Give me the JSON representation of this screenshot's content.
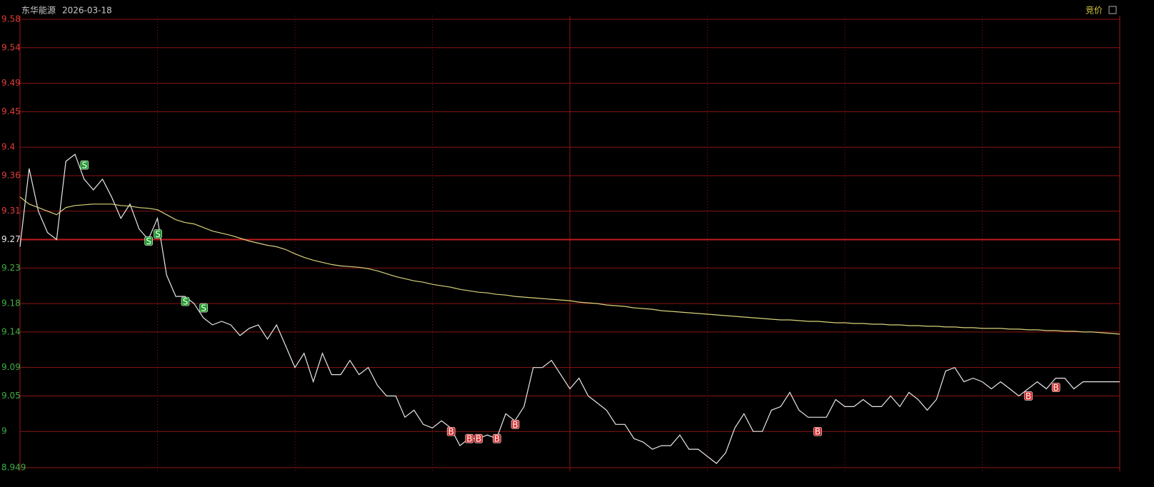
{
  "chart_data": {
    "type": "line",
    "title": "东华能源",
    "date": "2026-03-18",
    "mode_label": "竞价",
    "ylim": [
      8.949,
      9.58
    ],
    "yticks": [
      9.58,
      9.54,
      9.49,
      9.45,
      9.4,
      9.36,
      9.31,
      9.27,
      9.23,
      9.18,
      9.14,
      9.09,
      9.05,
      9.0,
      8.949
    ],
    "base": 9.27,
    "up_color": "#e03a3a",
    "down_color": "#3cb043",
    "grid": true,
    "series": [
      {
        "color": "#e8e8e8",
        "values": [
          9.26,
          9.37,
          9.31,
          9.28,
          9.27,
          9.38,
          9.39,
          9.355,
          9.34,
          9.355,
          9.33,
          9.3,
          9.32,
          9.285,
          9.27,
          9.3,
          9.22,
          9.19,
          9.19,
          9.18,
          9.16,
          9.15,
          9.155,
          9.15,
          9.135,
          9.145,
          9.15,
          9.13,
          9.15,
          9.12,
          9.09,
          9.11,
          9.07,
          9.11,
          9.08,
          9.08,
          9.1,
          9.08,
          9.09,
          9.065,
          9.05,
          9.05,
          9.02,
          9.03,
          9.01,
          9.005,
          9.015,
          9.005,
          8.98,
          8.99,
          8.99,
          8.995,
          8.99,
          9.025,
          9.015,
          9.035,
          9.09,
          9.09,
          9.1,
          9.08,
          9.06,
          9.075,
          9.05,
          9.04,
          9.03,
          9.01,
          9.01,
          8.99,
          8.985,
          8.975,
          8.98,
          8.98,
          8.995,
          8.975,
          8.975,
          8.965,
          8.955,
          8.97,
          9.005,
          9.025,
          9.0,
          9.0,
          9.03,
          9.035,
          9.055,
          9.03,
          9.02,
          9.02,
          9.02,
          9.045,
          9.035,
          9.035,
          9.045,
          9.035,
          9.035,
          9.05,
          9.035,
          9.055,
          9.045,
          9.03,
          9.045,
          9.085,
          9.09,
          9.07,
          9.075,
          9.07,
          9.06,
          9.07,
          9.06,
          9.05,
          9.06,
          9.07,
          9.06,
          9.075,
          9.075,
          9.06,
          9.07,
          9.07,
          9.07,
          9.07,
          9.07
        ]
      },
      {
        "color": "#d8d27a",
        "values": [
          9.33,
          9.32,
          9.315,
          9.31,
          9.305,
          9.315,
          9.318,
          9.319,
          9.32,
          9.32,
          9.32,
          9.318,
          9.317,
          9.315,
          9.314,
          9.312,
          9.305,
          9.298,
          9.294,
          9.292,
          9.287,
          9.282,
          9.279,
          9.276,
          9.272,
          9.268,
          9.265,
          9.262,
          9.26,
          9.256,
          9.25,
          9.245,
          9.241,
          9.238,
          9.235,
          9.233,
          9.232,
          9.231,
          9.229,
          9.226,
          9.222,
          9.218,
          9.215,
          9.212,
          9.21,
          9.207,
          9.205,
          9.203,
          9.2,
          9.198,
          9.196,
          9.195,
          9.193,
          9.192,
          9.19,
          9.189,
          9.188,
          9.187,
          9.186,
          9.185,
          9.184,
          9.182,
          9.181,
          9.18,
          9.178,
          9.177,
          9.176,
          9.174,
          9.173,
          9.172,
          9.17,
          9.169,
          9.168,
          9.167,
          9.166,
          9.165,
          9.164,
          9.163,
          9.162,
          9.161,
          9.16,
          9.159,
          9.158,
          9.157,
          9.157,
          9.156,
          9.155,
          9.155,
          9.154,
          9.153,
          9.153,
          9.152,
          9.152,
          9.151,
          9.151,
          9.15,
          9.15,
          9.149,
          9.149,
          9.148,
          9.148,
          9.147,
          9.147,
          9.146,
          9.146,
          9.145,
          9.145,
          9.145,
          9.144,
          9.144,
          9.143,
          9.143,
          9.142,
          9.142,
          9.141,
          9.141,
          9.14,
          9.14,
          9.139,
          9.138,
          9.137
        ]
      }
    ],
    "signals": [
      {
        "label": "S",
        "index": 7,
        "value": 9.375,
        "color": "#1f9a2a"
      },
      {
        "label": "S",
        "index": 14,
        "value": 9.268,
        "color": "#1f9a2a"
      },
      {
        "label": "S",
        "index": 15,
        "value": 9.278,
        "color": "#1f9a2a"
      },
      {
        "label": "S",
        "index": 18,
        "value": 9.183,
        "color": "#1f9a2a"
      },
      {
        "label": "S",
        "index": 20,
        "value": 9.174,
        "color": "#1f9a2a"
      },
      {
        "label": "B",
        "index": 47,
        "value": 9.0,
        "color": "#d42a2a"
      },
      {
        "label": "B",
        "index": 49,
        "value": 8.99,
        "color": "#d42a2a"
      },
      {
        "label": "B",
        "index": 50,
        "value": 8.99,
        "color": "#d42a2a"
      },
      {
        "label": "B",
        "index": 52,
        "value": 8.99,
        "color": "#d42a2a"
      },
      {
        "label": "B",
        "index": 54,
        "value": 9.01,
        "color": "#d42a2a"
      },
      {
        "label": "B",
        "index": 87,
        "value": 9.0,
        "color": "#d42a2a"
      },
      {
        "label": "B",
        "index": 110,
        "value": 9.05,
        "color": "#d42a2a"
      },
      {
        "label": "B",
        "index": 113,
        "value": 9.062,
        "color": "#d42a2a"
      }
    ]
  }
}
